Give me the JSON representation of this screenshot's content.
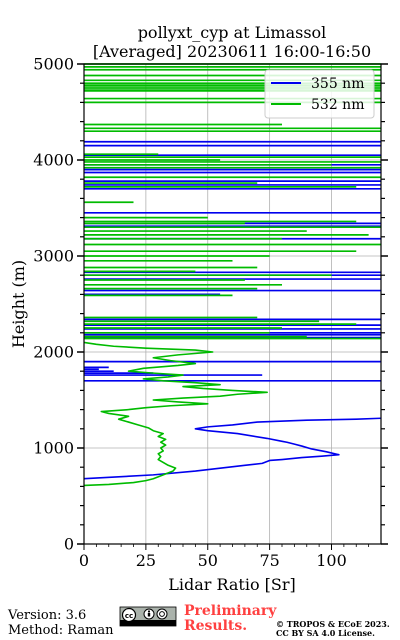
{
  "chart_data": {
    "type": "line",
    "title": [
      "pollyxt_cyp at Limassol",
      "[Averaged] 20230611 16:00-16:50"
    ],
    "xlabel": "Lidar Ratio [Sr]",
    "ylabel": "Height (m)",
    "xlim": [
      0,
      120
    ],
    "ylim": [
      0,
      5000
    ],
    "x_ticks": [
      0,
      25,
      50,
      75,
      100
    ],
    "y_ticks": [
      0,
      1000,
      2000,
      3000,
      4000,
      5000
    ],
    "grid": true,
    "legend_position": "top-right",
    "series": [
      {
        "name": "355 nm",
        "color": "#0000ee",
        "profile": [
          [
            0,
            680
          ],
          [
            28,
            720
          ],
          [
            45,
            760
          ],
          [
            55,
            790
          ],
          [
            65,
            820
          ],
          [
            72,
            840
          ],
          [
            75,
            870
          ],
          [
            80,
            880
          ],
          [
            88,
            900
          ],
          [
            96,
            915
          ],
          [
            103,
            930
          ],
          [
            98,
            960
          ],
          [
            92,
            990
          ],
          [
            88,
            1020
          ],
          [
            85,
            1040
          ],
          [
            82,
            1060
          ],
          [
            80,
            1070
          ],
          [
            74,
            1100
          ],
          [
            62,
            1150
          ],
          [
            50,
            1180
          ],
          [
            45,
            1200
          ],
          [
            50,
            1220
          ],
          [
            60,
            1240
          ],
          [
            70,
            1270
          ],
          [
            90,
            1290
          ],
          [
            110,
            1300
          ],
          [
            120,
            1310
          ]
        ],
        "layers": [
          [
            1700,
            0,
            120
          ],
          [
            1760,
            0,
            72
          ],
          [
            1780,
            0,
            28
          ],
          [
            1800,
            0,
            12
          ],
          [
            1820,
            0,
            6
          ],
          [
            1840,
            0,
            10
          ],
          [
            1900,
            0,
            120
          ],
          [
            2150,
            0,
            120
          ],
          [
            2180,
            0,
            120
          ],
          [
            2200,
            0,
            120
          ],
          [
            2240,
            0,
            120
          ],
          [
            2280,
            0,
            120
          ],
          [
            2340,
            0,
            120
          ],
          [
            2600,
            0,
            55
          ],
          [
            2640,
            0,
            120
          ],
          [
            2760,
            0,
            120
          ],
          [
            2800,
            0,
            120
          ],
          [
            2830,
            0,
            120
          ],
          [
            3180,
            0,
            120
          ],
          [
            3310,
            0,
            120
          ],
          [
            3340,
            0,
            120
          ],
          [
            3450,
            0,
            120
          ],
          [
            3700,
            0,
            120
          ],
          [
            3740,
            0,
            120
          ],
          [
            3780,
            0,
            120
          ],
          [
            3870,
            0,
            120
          ],
          [
            3900,
            0,
            120
          ],
          [
            3950,
            0,
            120
          ],
          [
            4050,
            0,
            120
          ],
          [
            4150,
            0,
            120
          ],
          [
            4190,
            0,
            120
          ]
        ]
      },
      {
        "name": "532 nm",
        "color": "#00bb00",
        "profile": [
          [
            0,
            610
          ],
          [
            10,
            620
          ],
          [
            20,
            640
          ],
          [
            25,
            660
          ],
          [
            28,
            680
          ],
          [
            32,
            720
          ],
          [
            36,
            760
          ],
          [
            37,
            790
          ],
          [
            34,
            820
          ],
          [
            32,
            850
          ],
          [
            30,
            880
          ],
          [
            31,
            910
          ],
          [
            30,
            940
          ],
          [
            32,
            970
          ],
          [
            31,
            1000
          ],
          [
            33,
            1030
          ],
          [
            31,
            1060
          ],
          [
            33,
            1090
          ],
          [
            30,
            1120
          ],
          [
            32,
            1150
          ],
          [
            28,
            1180
          ],
          [
            26,
            1210
          ],
          [
            22,
            1240
          ],
          [
            18,
            1270
          ],
          [
            14,
            1300
          ],
          [
            18,
            1330
          ],
          [
            10,
            1360
          ],
          [
            7,
            1380
          ],
          [
            18,
            1400
          ],
          [
            25,
            1420
          ],
          [
            35,
            1440
          ],
          [
            50,
            1460
          ],
          [
            38,
            1480
          ],
          [
            28,
            1500
          ],
          [
            40,
            1520
          ],
          [
            55,
            1540
          ],
          [
            62,
            1560
          ],
          [
            74,
            1580
          ],
          [
            60,
            1600
          ],
          [
            48,
            1620
          ],
          [
            40,
            1640
          ],
          [
            55,
            1660
          ],
          [
            45,
            1680
          ],
          [
            32,
            1700
          ],
          [
            24,
            1720
          ],
          [
            34,
            1740
          ],
          [
            40,
            1760
          ],
          [
            28,
            1780
          ],
          [
            18,
            1800
          ],
          [
            24,
            1830
          ],
          [
            38,
            1860
          ],
          [
            45,
            1880
          ],
          [
            35,
            1910
          ],
          [
            28,
            1940
          ],
          [
            38,
            1970
          ],
          [
            52,
            2000
          ],
          [
            45,
            2020
          ],
          [
            25,
            2040
          ],
          [
            12,
            2060
          ],
          [
            5,
            2080
          ],
          [
            0,
            2100
          ]
        ],
        "layers": [
          [
            2140,
            0,
            120
          ],
          [
            2160,
            0,
            90
          ],
          [
            2200,
            0,
            75
          ],
          [
            2250,
            0,
            80
          ],
          [
            2290,
            0,
            110
          ],
          [
            2320,
            0,
            95
          ],
          [
            2360,
            0,
            70
          ],
          [
            2590,
            0,
            60
          ],
          [
            2660,
            0,
            70
          ],
          [
            2700,
            0,
            80
          ],
          [
            2750,
            0,
            65
          ],
          [
            2800,
            0,
            100
          ],
          [
            2840,
            0,
            45
          ],
          [
            2880,
            0,
            70
          ],
          [
            2950,
            0,
            60
          ],
          [
            3000,
            0,
            75
          ],
          [
            3050,
            0,
            110
          ],
          [
            3120,
            0,
            120
          ],
          [
            3180,
            0,
            80
          ],
          [
            3220,
            0,
            115
          ],
          [
            3260,
            0,
            90
          ],
          [
            3300,
            0,
            120
          ],
          [
            3340,
            0,
            65
          ],
          [
            3360,
            0,
            110
          ],
          [
            3400,
            0,
            50
          ],
          [
            3560,
            0,
            20
          ],
          [
            3720,
            0,
            110
          ],
          [
            3760,
            0,
            70
          ],
          [
            3820,
            0,
            120
          ],
          [
            3920,
            0,
            120
          ],
          [
            3950,
            0,
            100
          ],
          [
            3980,
            0,
            120
          ],
          [
            4000,
            0,
            55
          ],
          [
            4030,
            0,
            120
          ],
          [
            4060,
            0,
            30
          ],
          [
            4300,
            0,
            120
          ],
          [
            4330,
            0,
            120
          ],
          [
            4370,
            0,
            80
          ],
          [
            4600,
            0,
            120
          ],
          [
            4640,
            0,
            120
          ],
          [
            4720,
            0,
            120
          ],
          [
            4740,
            0,
            120
          ],
          [
            4760,
            0,
            120
          ],
          [
            4780,
            0,
            120
          ],
          [
            4800,
            0,
            120
          ],
          [
            4830,
            0,
            120
          ],
          [
            4880,
            0,
            120
          ],
          [
            4940,
            0,
            120
          ],
          [
            4970,
            0,
            120
          ],
          [
            5000,
            0,
            120
          ]
        ]
      }
    ]
  },
  "footer": {
    "version": "Version: 3.6",
    "method": "Method: Raman",
    "preliminary": [
      "Preliminary",
      "Results."
    ],
    "copyright": [
      "© TROPOS & ECoE 2023.",
      "CC BY SA 4.0 License."
    ],
    "license_badge_icons": [
      "cc-icon",
      "by-icon",
      "sa-icon"
    ]
  }
}
